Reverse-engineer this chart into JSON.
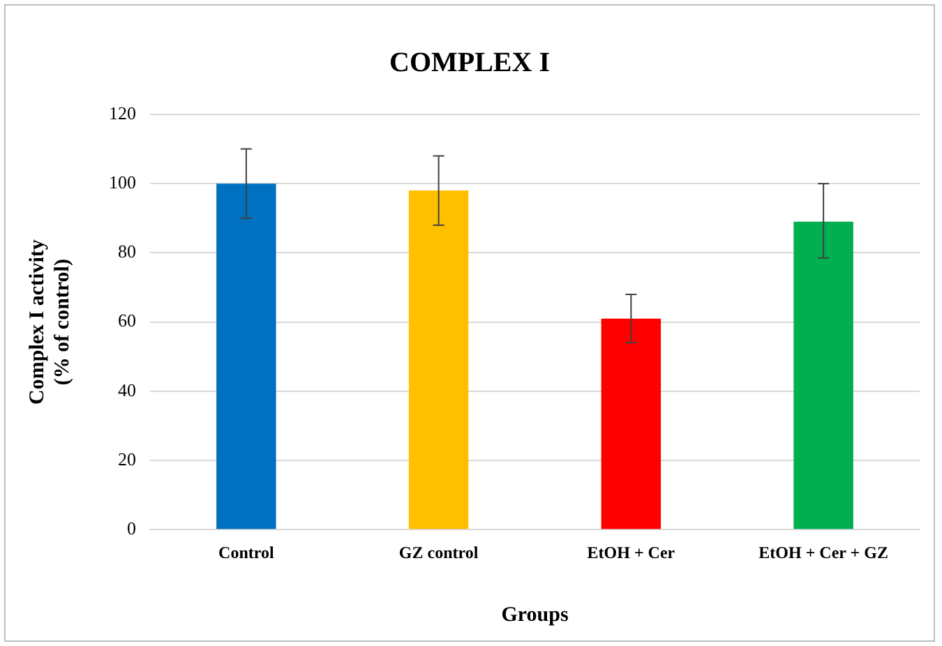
{
  "chart_data": {
    "type": "bar",
    "title": "COMPLEX I",
    "xlabel": "Groups",
    "ylabel": "Complex I activity\n(% of control)",
    "categories": [
      "Control",
      "GZ control",
      "EtOH + Cer",
      "EtOH + Cer + GZ"
    ],
    "values": [
      100,
      98,
      61,
      89
    ],
    "errors": [
      10,
      10,
      7,
      [
        78.5,
        100
      ]
    ],
    "colors": [
      "#0070c0",
      "#ffc000",
      "#ff0000",
      "#00b050"
    ],
    "ylim": [
      0,
      120
    ],
    "yticks": [
      0,
      20,
      40,
      60,
      80,
      100,
      120
    ],
    "grid": "y"
  }
}
